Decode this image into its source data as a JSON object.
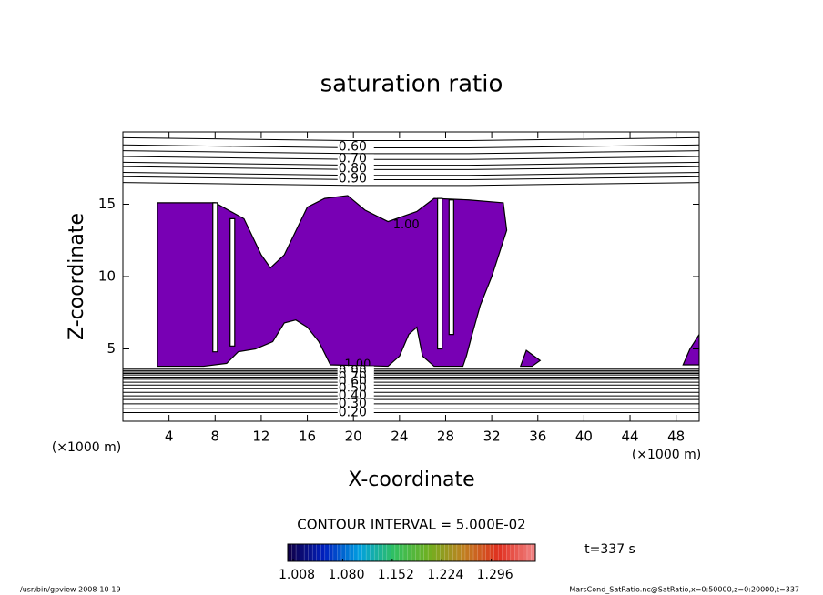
{
  "chart_data": {
    "type": "contour",
    "title": "saturation ratio",
    "x_label": "X-coordinate",
    "y_label": "Z-coordinate",
    "x_unit": "(×1000 m)",
    "xlim": [
      0,
      50
    ],
    "ylim": [
      0,
      20
    ],
    "xticks": [
      4,
      8,
      12,
      16,
      20,
      24,
      28,
      32,
      36,
      40,
      44,
      48
    ],
    "yticks": [
      5,
      10,
      15
    ],
    "contour_interval": "CONTOUR INTERVAL = 5.000E-02",
    "time_label": "t=337 s",
    "footer_left": "/usr/bin/gpview   2008-10-19",
    "footer_right": "MarsCond_SatRatio.nc@SatRatio,x=0:50000,z=0:20000,t=337",
    "x": [
      0,
      10,
      20,
      30,
      40,
      50
    ],
    "contours": [
      {
        "level": 0.55,
        "z": [
          19.6,
          19.5,
          19.4,
          19.4,
          19.5,
          19.6
        ]
      },
      {
        "level": 0.6,
        "label": "0.60",
        "z": [
          19.1,
          19.0,
          18.9,
          18.9,
          19.0,
          19.1
        ]
      },
      {
        "level": 0.65,
        "z": [
          18.7,
          18.6,
          18.5,
          18.5,
          18.6,
          18.7
        ]
      },
      {
        "level": 0.7,
        "label": "0.70",
        "z": [
          18.3,
          18.2,
          18.1,
          18.1,
          18.2,
          18.3
        ]
      },
      {
        "level": 0.75,
        "z": [
          17.9,
          17.8,
          17.7,
          17.7,
          17.8,
          17.9
        ]
      },
      {
        "level": 0.8,
        "label": "0.80",
        "z": [
          17.6,
          17.5,
          17.4,
          17.4,
          17.5,
          17.6
        ]
      },
      {
        "level": 0.85,
        "z": [
          17.2,
          17.1,
          17.0,
          17.0,
          17.1,
          17.2
        ]
      },
      {
        "level": 0.9,
        "label": "0.90",
        "z": [
          16.9,
          16.8,
          16.7,
          16.7,
          16.8,
          16.9
        ]
      },
      {
        "level": 0.95,
        "z": [
          16.5,
          16.4,
          16.3,
          16.3,
          16.4,
          16.5
        ]
      },
      {
        "level": 0.95,
        "z": [
          3.6,
          3.6,
          3.6,
          3.6,
          3.6,
          3.6
        ]
      },
      {
        "level": 0.9,
        "label": "0.90",
        "z": [
          3.5,
          3.5,
          3.5,
          3.5,
          3.5,
          3.5
        ]
      },
      {
        "level": 0.85,
        "z": [
          3.4,
          3.4,
          3.4,
          3.4,
          3.4,
          3.4
        ]
      },
      {
        "level": 0.8,
        "label": "0.80",
        "z": [
          3.3,
          3.3,
          3.3,
          3.3,
          3.3,
          3.3
        ]
      },
      {
        "level": 0.75,
        "z": [
          3.2,
          3.2,
          3.2,
          3.2,
          3.2,
          3.2
        ]
      },
      {
        "level": 0.7,
        "label": "0.70",
        "z": [
          3.05,
          3.05,
          3.05,
          3.05,
          3.05,
          3.05
        ]
      },
      {
        "level": 0.65,
        "z": [
          2.9,
          2.9,
          2.9,
          2.9,
          2.9,
          2.9
        ]
      },
      {
        "level": 0.6,
        "label": "0.60",
        "z": [
          2.7,
          2.7,
          2.7,
          2.7,
          2.7,
          2.7
        ]
      },
      {
        "level": 0.55,
        "z": [
          2.5,
          2.5,
          2.5,
          2.5,
          2.5,
          2.5
        ]
      },
      {
        "level": 0.5,
        "label": "0.50",
        "z": [
          2.25,
          2.25,
          2.25,
          2.25,
          2.25,
          2.25
        ]
      },
      {
        "level": 0.45,
        "z": [
          2.0,
          2.0,
          2.0,
          2.0,
          2.0,
          2.0
        ]
      },
      {
        "level": 0.4,
        "label": "0.40",
        "z": [
          1.75,
          1.75,
          1.75,
          1.75,
          1.75,
          1.75
        ]
      },
      {
        "level": 0.35,
        "z": [
          1.5,
          1.5,
          1.5,
          1.5,
          1.5,
          1.5
        ]
      },
      {
        "level": 0.3,
        "label": "0.30",
        "z": [
          1.2,
          1.2,
          1.2,
          1.2,
          1.2,
          1.2
        ]
      },
      {
        "level": 0.25,
        "z": [
          0.9,
          0.9,
          0.9,
          0.9,
          0.9,
          0.9
        ]
      },
      {
        "level": 0.2,
        "label": "0.20",
        "z": [
          0.6,
          0.6,
          0.6,
          0.6,
          0.6,
          0.6
        ]
      }
    ],
    "regions": [
      {
        "color": "#7800b4",
        "label": "1.00",
        "x": [
          3.0,
          3.0,
          8.0,
          10.5,
          12.0,
          12.8,
          14.0,
          16.0,
          17.5,
          19.5,
          21.0,
          23.0,
          25.5,
          27.0,
          30.0,
          33.0,
          33.3,
          32.0,
          31.0,
          30.3,
          29.8,
          29.5,
          27.0,
          26.0,
          25.5,
          24.8,
          24.0,
          23.0,
          18.0,
          17.0,
          16.0,
          15.0,
          14.0,
          13.0,
          11.5,
          10.0,
          9.0,
          7.0
        ],
        "z": [
          3.8,
          15.1,
          15.1,
          14.0,
          11.5,
          10.6,
          11.5,
          14.8,
          15.4,
          15.6,
          14.6,
          13.8,
          14.5,
          15.4,
          15.3,
          15.1,
          13.2,
          10.0,
          8.0,
          6.0,
          4.5,
          3.8,
          3.8,
          4.5,
          6.5,
          6.0,
          4.5,
          3.8,
          3.9,
          5.5,
          6.5,
          7.0,
          6.8,
          5.5,
          5.0,
          4.8,
          4.0,
          3.8
        ]
      },
      {
        "color": "#ffffff",
        "x": [
          7.8,
          8.2,
          8.2,
          7.8
        ],
        "z": [
          4.8,
          4.8,
          15.1,
          15.1
        ]
      },
      {
        "color": "#ffffff",
        "x": [
          9.3,
          9.7,
          9.7,
          9.3
        ],
        "z": [
          5.2,
          5.2,
          14.0,
          14.0
        ]
      },
      {
        "color": "#ffffff",
        "x": [
          27.3,
          27.7,
          27.7,
          27.3
        ],
        "z": [
          5.0,
          5.0,
          15.4,
          15.4
        ]
      },
      {
        "color": "#ffffff",
        "x": [
          28.3,
          28.7,
          28.7,
          28.3
        ],
        "z": [
          6.0,
          6.0,
          15.3,
          15.3
        ]
      },
      {
        "color": "#7800b4",
        "x": [
          34.5,
          35.5,
          36.2,
          35.0
        ],
        "z": [
          3.8,
          3.8,
          4.2,
          4.9
        ]
      },
      {
        "color": "#7800b4",
        "x": [
          48.6,
          50.0,
          50.0,
          49.2
        ],
        "z": [
          3.9,
          3.9,
          6.0,
          5.0
        ]
      }
    ],
    "colorbar": {
      "clim": [
        1.0,
        1.36
      ],
      "colors": [
        "#10004a",
        "#0020c0",
        "#00a0e0",
        "#30c060",
        "#70b020",
        "#c08020",
        "#e03020",
        "#f08080"
      ],
      "ticks": [
        1.008,
        {
          "value": 1.08,
          "label": "1.080"
        },
        1.152,
        1.224,
        1.296
      ]
    }
  }
}
